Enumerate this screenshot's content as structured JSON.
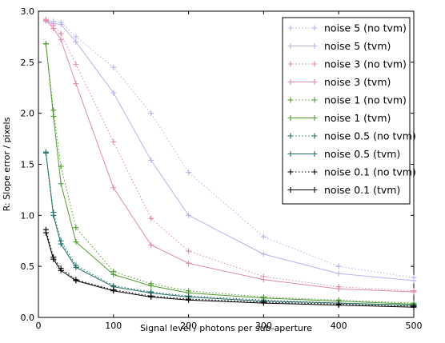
{
  "chart_data": {
    "type": "line",
    "xlabel": "Signal level / photons per sub-aperture",
    "ylabel": "R: Slope error / pixels",
    "xlim": [
      0,
      500
    ],
    "ylim": [
      0.0,
      3.0
    ],
    "x_ticks": [
      0,
      100,
      200,
      300,
      400,
      500
    ],
    "y_ticks": [
      0.0,
      0.5,
      1.0,
      1.5,
      2.0,
      2.5,
      3.0
    ],
    "x_tick_labels": [
      "0",
      "100",
      "200",
      "300",
      "400",
      "500"
    ],
    "y_tick_labels": [
      "0.0",
      "0.5",
      "1.0",
      "1.5",
      "2.0",
      "2.5",
      "3.0"
    ],
    "grid": false,
    "legend_position": "top-right",
    "marker": "+",
    "x": [
      10,
      20,
      30,
      50,
      100,
      150,
      200,
      300,
      400,
      500
    ],
    "series": [
      {
        "name": "noise 5 (no tvm)",
        "color": "#b8b3ee",
        "style": "dotted",
        "values": [
          2.91,
          2.9,
          2.89,
          2.75,
          2.45,
          2.0,
          1.42,
          0.79,
          0.5,
          0.39
        ]
      },
      {
        "name": "noise 5 (tvm)",
        "color": "#b8b3ee",
        "style": "solid",
        "values": [
          2.9,
          2.88,
          2.87,
          2.7,
          2.2,
          1.54,
          1.0,
          0.62,
          0.43,
          0.36
        ]
      },
      {
        "name": "noise 3 (no tvm)",
        "color": "#e08aa6",
        "style": "dotted",
        "values": [
          2.92,
          2.86,
          2.78,
          2.48,
          1.72,
          0.97,
          0.65,
          0.4,
          0.3,
          0.26
        ]
      },
      {
        "name": "noise 3 (tvm)",
        "color": "#e08aa6",
        "style": "solid",
        "values": [
          2.91,
          2.83,
          2.72,
          2.29,
          1.27,
          0.71,
          0.53,
          0.37,
          0.28,
          0.25
        ]
      },
      {
        "name": "noise 1 (no tvm)",
        "color": "#4f9b2e",
        "style": "dotted",
        "values": [
          2.68,
          2.03,
          1.48,
          0.88,
          0.45,
          0.33,
          0.26,
          0.2,
          0.17,
          0.14
        ]
      },
      {
        "name": "noise 1 (tvm)",
        "color": "#4f9b2e",
        "style": "solid",
        "values": [
          2.68,
          1.97,
          1.31,
          0.74,
          0.42,
          0.31,
          0.24,
          0.19,
          0.16,
          0.13
        ]
      },
      {
        "name": "noise 0.5 (no tvm)",
        "color": "#1f6e63",
        "style": "dotted",
        "values": [
          1.62,
          1.03,
          0.75,
          0.51,
          0.31,
          0.25,
          0.21,
          0.17,
          0.14,
          0.12
        ]
      },
      {
        "name": "noise 0.5 (tvm)",
        "color": "#1f6e63",
        "style": "solid",
        "values": [
          1.61,
          1.0,
          0.72,
          0.49,
          0.3,
          0.24,
          0.2,
          0.16,
          0.14,
          0.12
        ]
      },
      {
        "name": "noise 0.1 (no tvm)",
        "color": "#000000",
        "style": "dotted",
        "values": [
          0.86,
          0.59,
          0.48,
          0.37,
          0.27,
          0.21,
          0.18,
          0.15,
          0.13,
          0.11
        ]
      },
      {
        "name": "noise 0.1 (tvm)",
        "color": "#000000",
        "style": "solid",
        "values": [
          0.83,
          0.57,
          0.46,
          0.36,
          0.26,
          0.2,
          0.17,
          0.14,
          0.12,
          0.1
        ]
      }
    ]
  }
}
